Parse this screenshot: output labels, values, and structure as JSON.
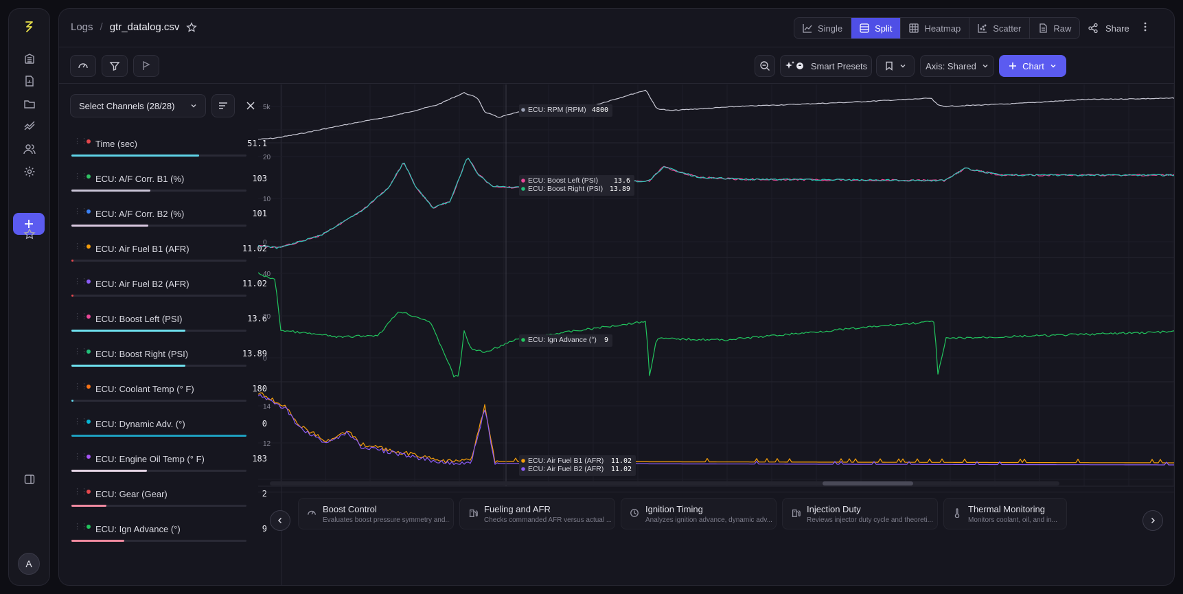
{
  "app": {
    "logo_icon": "bolt-logo-icon",
    "accent": "#5b5bf0"
  },
  "rail": {
    "items": [
      {
        "icon": "building-icon"
      },
      {
        "icon": "file-chart-icon"
      },
      {
        "icon": "folder-icon"
      },
      {
        "icon": "trend-icon"
      },
      {
        "icon": "users-icon"
      },
      {
        "icon": "gear-icon"
      }
    ],
    "add_icon": "plus-icon",
    "fav_icon": "star-icon",
    "panel_icon": "sidebar-toggle-icon",
    "avatar": "A"
  },
  "breadcrumb": {
    "parent": "Logs",
    "separator": "/",
    "current": "gtr_datalog.csv"
  },
  "views": [
    {
      "label": "Single",
      "icon": "line-chart-icon",
      "active": false
    },
    {
      "label": "Split",
      "icon": "split-rows-icon",
      "active": true
    },
    {
      "label": "Heatmap",
      "icon": "grid-icon",
      "active": false
    },
    {
      "label": "Scatter",
      "icon": "scatter-icon",
      "active": false
    },
    {
      "label": "Raw",
      "icon": "document-icon",
      "active": false
    }
  ],
  "share_label": "Share",
  "toolbar": {
    "smart_presets": "Smart Presets",
    "axis_label": "Axis: Shared",
    "chart_label": "Chart"
  },
  "sidebar": {
    "select_label": "Select Channels (28/28)"
  },
  "channels": [
    {
      "name": "Time (sec)",
      "value": "51.1",
      "color": "#e5484d",
      "bar": 0.73,
      "bar_color": "#5fd4e8"
    },
    {
      "name": "ECU: A/F Corr. B1 (%)",
      "value": "103",
      "color": "#30c264",
      "bar": 0.45,
      "bar_color": "#c9c4d6"
    },
    {
      "name": "ECU: A/F Corr. B2 (%)",
      "value": "101",
      "color": "#3b82f6",
      "bar": 0.44,
      "bar_color": "#d9c8e0"
    },
    {
      "name": "ECU: Air Fuel B1 (AFR)",
      "value": "11.02",
      "color": "#f59e0b",
      "bar": 0.01,
      "bar_color": "#e5484d"
    },
    {
      "name": "ECU: Air Fuel B2 (AFR)",
      "value": "11.02",
      "color": "#8b5cf6",
      "bar": 0.01,
      "bar_color": "#e5484d"
    },
    {
      "name": "ECU: Boost Left (PSI)",
      "value": "13.6",
      "color": "#ec4899",
      "bar": 0.65,
      "bar_color": "#6ee0ee"
    },
    {
      "name": "ECU: Boost Right (PSI)",
      "value": "13.89",
      "color": "#22c07a",
      "bar": 0.65,
      "bar_color": "#6ee0ee"
    },
    {
      "name": "ECU: Coolant Temp (° F)",
      "value": "180",
      "color": "#f97316",
      "bar": 0.0,
      "bar_color": "#5fd4e8"
    },
    {
      "name": "ECU: Dynamic Adv. (°)",
      "value": "0",
      "color": "#06b6d4",
      "bar": 1.0,
      "bar_color": "#1ea0c0"
    },
    {
      "name": "ECU: Engine Oil Temp (° F)",
      "value": "183",
      "color": "#a855f7",
      "bar": 0.43,
      "bar_color": "#e6d6e6"
    },
    {
      "name": "ECU: Gear (Gear)",
      "value": "2",
      "color": "#e5484d",
      "bar": 0.2,
      "bar_color": "#f08aa0"
    },
    {
      "name": "ECU: Ign Advance (°)",
      "value": "9",
      "color": "#22c55e",
      "bar": 0.3,
      "bar_color": "#f08aa0"
    }
  ],
  "panels": [
    {
      "ticks": [
        "5k"
      ],
      "tooltip": [
        {
          "label": "ECU: RPM (RPM)",
          "value": "4800",
          "color": "#9aa0b4"
        }
      ]
    },
    {
      "ticks": [
        "20",
        "10",
        "0"
      ],
      "tooltip": [
        {
          "label": "ECU: Boost Left (PSI)",
          "value": "13.6",
          "color": "#ec4899"
        },
        {
          "label": "ECU: Boost Right (PSI)",
          "value": "13.89",
          "color": "#22c07a"
        }
      ]
    },
    {
      "ticks": [
        "40",
        "20",
        "0"
      ],
      "tooltip": [
        {
          "label": "ECU: Ign Advance (°)",
          "value": "9",
          "color": "#22c55e"
        }
      ]
    },
    {
      "ticks": [
        "14",
        "12"
      ],
      "tooltip": [
        {
          "label": "ECU: Air Fuel B1 (AFR)",
          "value": "11.02",
          "color": "#f59e0b"
        },
        {
          "label": "ECU: Air Fuel B2 (AFR)",
          "value": "11.02",
          "color": "#8b5cf6"
        }
      ]
    }
  ],
  "presets": [
    {
      "title": "Boost Control",
      "desc": "Evaluates boost pressure symmetry and...",
      "icon": "gauge-icon"
    },
    {
      "title": "Fueling and AFR",
      "desc": "Checks commanded AFR versus actual ...",
      "icon": "fuel-pump-icon"
    },
    {
      "title": "Ignition Timing",
      "desc": "Analyzes ignition advance, dynamic adv...",
      "icon": "clock-icon"
    },
    {
      "title": "Injection Duty",
      "desc": "Reviews injector duty cycle and theoreti...",
      "icon": "fuel-pump-icon"
    },
    {
      "title": "Thermal Monitoring",
      "desc": "Monitors coolant, oil, and in...",
      "icon": "thermometer-icon"
    }
  ]
}
